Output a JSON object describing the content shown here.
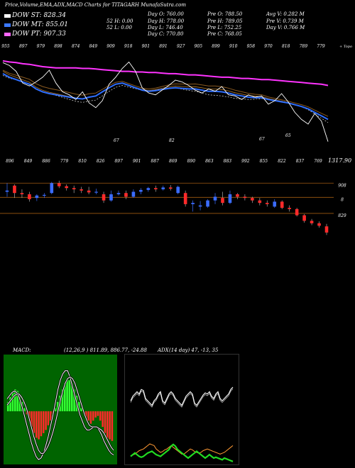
{
  "header": {
    "title": "Price,Volume,EMA,ADX,MACD Charts for TITAGARH MunafaSutra.com"
  },
  "legend": [
    {
      "label": "DOW ST: 828.34",
      "color": "#ffffff"
    },
    {
      "label": "DOW MT: 855.01",
      "color": "#3a78ff"
    },
    {
      "label": "DOW PT: 907.33",
      "color": "#ff66ff"
    }
  ],
  "stats": [
    [
      "Day O: 760.00",
      "Pre O: 788.50",
      "Avg V: 0.282 M"
    ],
    [
      "52 H: 0.00",
      "Day H: 778.00",
      "Pre H: 789.05",
      "Pre V: 0.739 M"
    ],
    [
      "52 L: 0.00",
      "Day L: 746.40",
      "Pre L: 752.25",
      "Day V: 0.766 M"
    ],
    [
      "Day C: 770.80",
      "Pre C: 768.05"
    ]
  ],
  "chart_data": [
    {
      "type": "line",
      "name": "price-ema",
      "top_labels": [
        "955",
        "897",
        "979",
        "898",
        "874",
        "849",
        "909",
        "918",
        "901",
        "891",
        "927",
        "905",
        "899",
        "910",
        "958",
        "970",
        "818",
        "789",
        "779"
      ],
      "top_right_label": "+ Topo",
      "bottom_labels": [
        "896",
        "849",
        "886",
        "779",
        "810",
        "826",
        "897",
        "901",
        "887",
        "869",
        "890",
        "863",
        "883",
        "992",
        "855",
        "822",
        "837",
        "769"
      ],
      "annotations": [
        "67",
        "82",
        "67",
        "65"
      ],
      "value_label": "1317.90",
      "series": [
        {
          "name": "DOW PT",
          "color": "#ff33ff",
          "values": [
            908,
            906,
            905,
            903,
            902,
            900,
            898,
            897,
            896,
            896,
            896,
            896,
            895,
            895,
            894,
            893,
            892,
            891,
            890,
            890,
            889,
            889,
            888,
            888,
            887,
            886,
            886,
            885,
            884,
            884,
            883,
            882,
            881,
            880,
            880,
            879,
            878,
            878,
            877,
            876,
            876,
            875,
            874,
            873,
            872,
            871,
            870,
            869,
            868,
            866
          ]
        },
        {
          "name": "DOW MT",
          "color": "#2f6fff",
          "values": [
            886,
            880,
            876,
            872,
            868,
            860,
            855,
            852,
            850,
            848,
            846,
            844,
            843,
            846,
            848,
            855,
            862,
            868,
            870,
            866,
            862,
            858,
            856,
            857,
            859,
            861,
            862,
            861,
            860,
            860,
            858,
            856,
            856,
            855,
            853,
            850,
            848,
            846,
            845,
            845,
            842,
            840,
            838,
            836,
            833,
            830,
            826,
            820,
            814,
            808
          ]
        },
        {
          "name": "DOW ST",
          "color": "#ffffff",
          "values": [
            905,
            900,
            890,
            870,
            865,
            872,
            880,
            892,
            870,
            855,
            850,
            842,
            855,
            836,
            828,
            840,
            868,
            880,
            895,
            906,
            890,
            862,
            853,
            850,
            858,
            866,
            875,
            872,
            866,
            858,
            853,
            860,
            856,
            864,
            850,
            848,
            842,
            850,
            846,
            848,
            834,
            840,
            852,
            838,
            820,
            808,
            800,
            818,
            805,
            770
          ]
        }
      ]
    },
    {
      "type": "candlestick",
      "name": "price-candles",
      "ylim": [
        758,
        905
      ],
      "levels": [
        {
          "label": "908",
          "value": 884
        },
        {
          "label": "8",
          "value": 861
        },
        {
          "label": "829",
          "value": 835
        }
      ],
      "candles": [
        {
          "o": 870,
          "h": 884,
          "l": 862,
          "c": 872
        },
        {
          "o": 880,
          "h": 882,
          "l": 860,
          "c": 868
        },
        {
          "o": 868,
          "h": 874,
          "l": 860,
          "c": 866
        },
        {
          "o": 866,
          "h": 870,
          "l": 854,
          "c": 858
        },
        {
          "o": 860,
          "h": 866,
          "l": 855,
          "c": 864
        },
        {
          "o": 864,
          "h": 868,
          "l": 860,
          "c": 865
        },
        {
          "o": 868,
          "h": 886,
          "l": 866,
          "c": 884
        },
        {
          "o": 884,
          "h": 888,
          "l": 876,
          "c": 879
        },
        {
          "o": 879,
          "h": 882,
          "l": 872,
          "c": 876
        },
        {
          "o": 876,
          "h": 880,
          "l": 868,
          "c": 874
        },
        {
          "o": 874,
          "h": 878,
          "l": 868,
          "c": 872
        },
        {
          "o": 872,
          "h": 878,
          "l": 866,
          "c": 869
        },
        {
          "o": 869,
          "h": 875,
          "l": 866,
          "c": 870
        },
        {
          "o": 866,
          "h": 870,
          "l": 852,
          "c": 856
        },
        {
          "o": 856,
          "h": 872,
          "l": 854,
          "c": 866
        },
        {
          "o": 866,
          "h": 872,
          "l": 864,
          "c": 868
        },
        {
          "o": 868,
          "h": 872,
          "l": 858,
          "c": 862
        },
        {
          "o": 862,
          "h": 874,
          "l": 860,
          "c": 870
        },
        {
          "o": 870,
          "h": 876,
          "l": 866,
          "c": 873
        },
        {
          "o": 873,
          "h": 878,
          "l": 870,
          "c": 876
        },
        {
          "o": 876,
          "h": 880,
          "l": 870,
          "c": 874
        },
        {
          "o": 874,
          "h": 880,
          "l": 872,
          "c": 877
        },
        {
          "o": 877,
          "h": 881,
          "l": 872,
          "c": 875
        },
        {
          "o": 868,
          "h": 880,
          "l": 866,
          "c": 878
        },
        {
          "o": 868,
          "h": 872,
          "l": 846,
          "c": 850
        },
        {
          "o": 850,
          "h": 856,
          "l": 838,
          "c": 852
        },
        {
          "o": 846,
          "h": 855,
          "l": 840,
          "c": 848
        },
        {
          "o": 846,
          "h": 858,
          "l": 844,
          "c": 856
        },
        {
          "o": 856,
          "h": 868,
          "l": 850,
          "c": 862
        },
        {
          "o": 860,
          "h": 870,
          "l": 848,
          "c": 852
        },
        {
          "o": 852,
          "h": 872,
          "l": 850,
          "c": 866
        },
        {
          "o": 866,
          "h": 868,
          "l": 858,
          "c": 862
        },
        {
          "o": 862,
          "h": 866,
          "l": 856,
          "c": 860
        },
        {
          "o": 860,
          "h": 862,
          "l": 852,
          "c": 856
        },
        {
          "o": 856,
          "h": 860,
          "l": 848,
          "c": 852
        },
        {
          "o": 852,
          "h": 856,
          "l": 846,
          "c": 850
        },
        {
          "o": 846,
          "h": 858,
          "l": 844,
          "c": 854
        },
        {
          "o": 854,
          "h": 856,
          "l": 842,
          "c": 844
        },
        {
          "o": 844,
          "h": 848,
          "l": 838,
          "c": 842
        },
        {
          "o": 842,
          "h": 844,
          "l": 830,
          "c": 832
        },
        {
          "o": 832,
          "h": 834,
          "l": 820,
          "c": 823
        },
        {
          "o": 823,
          "h": 826,
          "l": 816,
          "c": 819
        },
        {
          "o": 819,
          "h": 822,
          "l": 812,
          "c": 815
        },
        {
          "o": 814,
          "h": 818,
          "l": 800,
          "c": 804
        }
      ]
    },
    {
      "type": "bar",
      "name": "macd",
      "title": "MACD:",
      "params": "(12,26,9 ) 811.89, 886.77, -24.88",
      "values": [
        6,
        9,
        12,
        14,
        13,
        10,
        6,
        2,
        -2,
        -6,
        -10,
        -14,
        -17,
        -18,
        -16,
        -14,
        -12,
        -9,
        -6,
        -2,
        2,
        6,
        10,
        14,
        18,
        20,
        20,
        18,
        14,
        10,
        6,
        2,
        -1,
        -4,
        -6,
        -8,
        -6,
        -4,
        -3,
        -6,
        -10,
        -14,
        -17,
        -18,
        -19
      ],
      "lines": [
        {
          "name": "macd",
          "color": "#ffffff",
          "values": [
            8,
            10,
            12,
            13,
            12,
            9,
            4,
            -2,
            -8,
            -14,
            -20,
            -25,
            -29,
            -31,
            -30,
            -27,
            -22,
            -16,
            -9,
            -2,
            6,
            14,
            20,
            24,
            26,
            26,
            22,
            16,
            10,
            4,
            -2,
            -6,
            -10,
            -12,
            -12,
            -11,
            -10,
            -10,
            -12,
            -15,
            -19,
            -22,
            -25,
            -27,
            -28
          ]
        },
        {
          "name": "signal",
          "color": "#ffffff",
          "values": [
            4,
            6,
            8,
            10,
            11,
            11,
            9,
            6,
            2,
            -4,
            -10,
            -16,
            -21,
            -25,
            -27,
            -27,
            -25,
            -22,
            -18,
            -13,
            -7,
            0,
            7,
            13,
            18,
            21,
            22,
            21,
            18,
            13,
            8,
            3,
            -2,
            -6,
            -9,
            -10,
            -10,
            -10,
            -11,
            -12,
            -14,
            -17,
            -20,
            -23,
            -25
          ]
        }
      ]
    },
    {
      "type": "line",
      "name": "adx",
      "title": "ADX",
      "params": "(14 day) 47, -13, 35",
      "series": [
        {
          "name": "ADX",
          "color": "#ffffff",
          "values": [
            28,
            32,
            34,
            36,
            34,
            38,
            37,
            30,
            28,
            26,
            24,
            28,
            30,
            34,
            36,
            28,
            26,
            30,
            34,
            36,
            34,
            30,
            28,
            26,
            24,
            28,
            32,
            34,
            36,
            34,
            26,
            24,
            27,
            30,
            33,
            35,
            34,
            36,
            32,
            30,
            34,
            36,
            30,
            28,
            30,
            32,
            34,
            38,
            40
          ]
        },
        {
          "name": "+DI",
          "color": "#ff9933",
          "values": [
            -4,
            -3,
            -2,
            0,
            2,
            3,
            4,
            6,
            8,
            10,
            9,
            8,
            4,
            2,
            0,
            1,
            3,
            4,
            6,
            8,
            6,
            4,
            2,
            0,
            -2,
            -2,
            0,
            2,
            4,
            3,
            1,
            0,
            -1,
            0,
            2,
            3,
            4,
            3,
            2,
            1,
            0,
            -1,
            -2,
            -1,
            0,
            2,
            4,
            6,
            8
          ]
        },
        {
          "name": "-DI",
          "color": "#22dd22",
          "values": [
            -8,
            -6,
            -4,
            -6,
            -8,
            -9,
            -8,
            -6,
            -4,
            -3,
            -2,
            -4,
            -6,
            -7,
            -8,
            -6,
            -4,
            -2,
            0,
            4,
            6,
            4,
            0,
            -2,
            -4,
            -6,
            -8,
            -10,
            -8,
            -6,
            -4,
            -2,
            -4,
            -6,
            -8,
            -10,
            -8,
            -6,
            -8,
            -10,
            -9,
            -10,
            -11,
            -12,
            -10,
            -11,
            -12,
            -13,
            -14
          ]
        }
      ]
    }
  ]
}
